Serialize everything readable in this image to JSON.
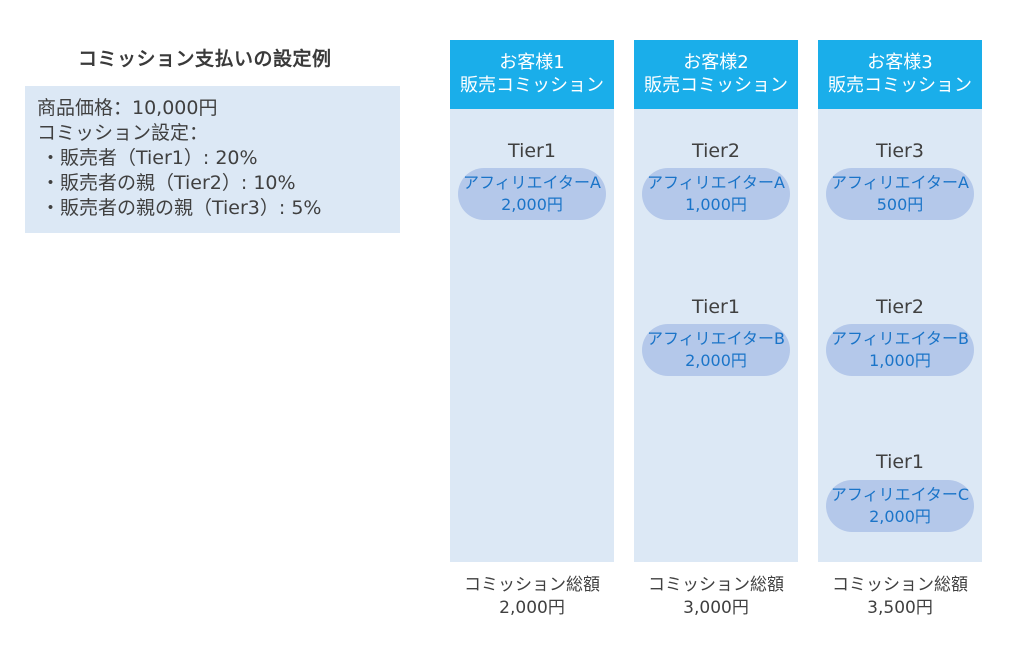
{
  "title": "コミッション支払いの設定例",
  "settings": {
    "price": "商品価格：10,000円",
    "label": "コミッション設定：",
    "bullets": [
      "・販売者（Tier1）: 20%",
      "・販売者の親（Tier2）: 10%",
      "・販売者の親の親（Tier3）: 5%"
    ]
  },
  "columns": [
    {
      "header_line1": "お客様1",
      "header_line2": "販売コミッション",
      "tiers": [
        {
          "tier": "Tier1",
          "affiliate": "アフィリエイターA",
          "amount": "2,000円"
        }
      ],
      "total_label": "コミッション総額",
      "total_amount": "2,000円"
    },
    {
      "header_line1": "お客様2",
      "header_line2": "販売コミッション",
      "tiers": [
        {
          "tier": "Tier2",
          "affiliate": "アフィリエイターA",
          "amount": "1,000円"
        },
        {
          "tier": "Tier1",
          "affiliate": "アフィリエイターB",
          "amount": "2,000円"
        }
      ],
      "total_label": "コミッション総額",
      "total_amount": "3,000円"
    },
    {
      "header_line1": "お客様3",
      "header_line2": "販売コミッション",
      "tiers": [
        {
          "tier": "Tier3",
          "affiliate": "アフィリエイターA",
          "amount": "500円"
        },
        {
          "tier": "Tier2",
          "affiliate": "アフィリエイターB",
          "amount": "1,000円"
        },
        {
          "tier": "Tier1",
          "affiliate": "アフィリエイターC",
          "amount": "2,000円"
        }
      ],
      "total_label": "コミッション総額",
      "total_amount": "3,500円"
    }
  ]
}
